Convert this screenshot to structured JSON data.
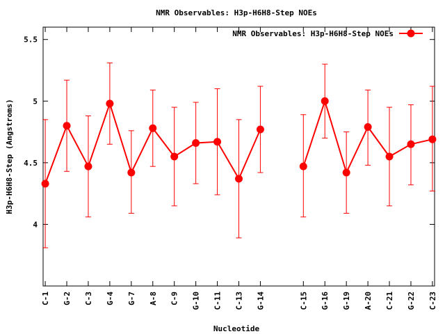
{
  "chart_data": {
    "type": "line",
    "title": "NMR Observables: H3p-H6H8-Step NOEs",
    "xlabel": "Nucleotide",
    "ylabel": "H3p-H6H8-Step (Angstroms)",
    "ylim": [
      3.5,
      5.6
    ],
    "yticks": [
      4,
      4.5,
      5,
      5.5
    ],
    "ytick_labels": [
      "4",
      "4.5",
      "5",
      "5.5"
    ],
    "grid": false,
    "legend_position": "top-right",
    "x_index_range": [
      -0.1,
      18.1
    ],
    "categories": [
      "C-1",
      "G-2",
      "C-3",
      "G-4",
      "G-7",
      "A-8",
      "C-9",
      "G-10",
      "C-11",
      "C-13",
      "G-14",
      "C-15",
      "G-16",
      "G-19",
      "A-20",
      "C-21",
      "G-22",
      "C-23"
    ],
    "x_index": [
      0,
      1,
      2,
      3,
      4,
      5,
      6,
      7,
      8,
      9,
      10,
      12,
      13,
      14,
      15,
      16,
      17,
      18
    ],
    "series": [
      {
        "name": "NMR Observables: H3p-H6H8-Step NOEs",
        "color": "#ff0000",
        "segments": [
          [
            0,
            10
          ],
          [
            11,
            17
          ]
        ],
        "values": [
          4.33,
          4.8,
          4.47,
          4.98,
          4.42,
          4.78,
          4.55,
          4.66,
          4.67,
          4.37,
          4.77,
          4.47,
          5.0,
          4.42,
          4.79,
          4.55,
          4.65,
          4.69
        ],
        "err_low": [
          3.81,
          4.43,
          4.06,
          4.65,
          4.09,
          4.47,
          4.15,
          4.33,
          4.24,
          3.89,
          4.42,
          4.06,
          4.7,
          4.09,
          4.48,
          4.15,
          4.32,
          4.27
        ],
        "err_high": [
          4.85,
          5.17,
          4.88,
          5.31,
          4.76,
          5.09,
          4.95,
          4.99,
          5.1,
          4.85,
          5.12,
          4.89,
          5.3,
          4.75,
          5.09,
          4.95,
          4.97,
          5.12
        ]
      }
    ]
  }
}
